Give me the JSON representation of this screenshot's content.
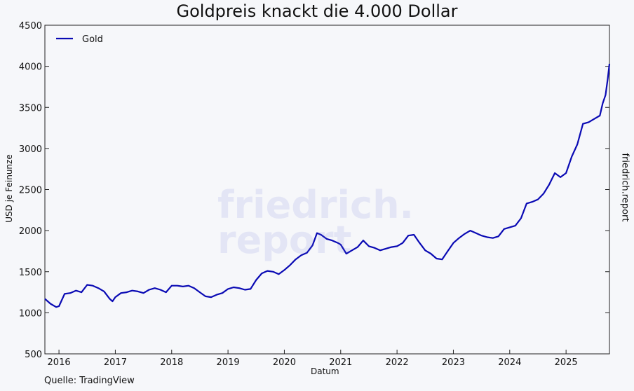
{
  "chart_data": {
    "type": "line",
    "title": "Goldpreis knackt die 4.000 Dollar",
    "xlabel": "Datum",
    "ylabel": "USD je Feinunze",
    "ylim": [
      500,
      4500
    ],
    "xlim": [
      2015.75,
      2025.77
    ],
    "y_ticks": [
      500,
      1000,
      1500,
      2000,
      2500,
      3000,
      3500,
      4000,
      4500
    ],
    "x_ticks": [
      "2016",
      "2017",
      "2018",
      "2019",
      "2020",
      "2021",
      "2022",
      "2023",
      "2024",
      "2025"
    ],
    "legend": "top-left",
    "grid": false,
    "color": "#0a0ab4",
    "series": [
      {
        "name": "Gold",
        "x": [
          2015.75,
          2015.85,
          2015.95,
          2016.0,
          2016.1,
          2016.2,
          2016.3,
          2016.4,
          2016.5,
          2016.6,
          2016.7,
          2016.8,
          2016.9,
          2016.95,
          2017.0,
          2017.1,
          2017.2,
          2017.3,
          2017.4,
          2017.5,
          2017.6,
          2017.7,
          2017.8,
          2017.9,
          2018.0,
          2018.1,
          2018.2,
          2018.3,
          2018.4,
          2018.5,
          2018.6,
          2018.7,
          2018.8,
          2018.9,
          2019.0,
          2019.1,
          2019.2,
          2019.3,
          2019.4,
          2019.5,
          2019.6,
          2019.7,
          2019.8,
          2019.9,
          2020.0,
          2020.1,
          2020.2,
          2020.3,
          2020.4,
          2020.5,
          2020.58,
          2020.65,
          2020.75,
          2020.85,
          2020.95,
          2021.0,
          2021.1,
          2021.2,
          2021.3,
          2021.4,
          2021.5,
          2021.6,
          2021.7,
          2021.8,
          2021.9,
          2022.0,
          2022.1,
          2022.2,
          2022.3,
          2022.4,
          2022.5,
          2022.6,
          2022.7,
          2022.8,
          2022.9,
          2023.0,
          2023.1,
          2023.2,
          2023.3,
          2023.4,
          2023.5,
          2023.6,
          2023.7,
          2023.8,
          2023.9,
          2024.0,
          2024.1,
          2024.2,
          2024.3,
          2024.4,
          2024.5,
          2024.6,
          2024.7,
          2024.8,
          2024.9,
          2025.0,
          2025.1,
          2025.2,
          2025.3,
          2025.4,
          2025.5,
          2025.6,
          2025.65,
          2025.7,
          2025.74,
          2025.77
        ],
        "values": [
          1170,
          1110,
          1070,
          1080,
          1230,
          1240,
          1270,
          1250,
          1340,
          1330,
          1300,
          1260,
          1170,
          1140,
          1190,
          1240,
          1250,
          1270,
          1260,
          1240,
          1280,
          1300,
          1280,
          1250,
          1330,
          1330,
          1320,
          1330,
          1300,
          1250,
          1200,
          1190,
          1220,
          1240,
          1290,
          1310,
          1300,
          1280,
          1290,
          1400,
          1480,
          1510,
          1500,
          1470,
          1520,
          1580,
          1650,
          1700,
          1730,
          1820,
          1970,
          1950,
          1900,
          1880,
          1850,
          1830,
          1720,
          1760,
          1800,
          1880,
          1810,
          1790,
          1760,
          1780,
          1800,
          1810,
          1850,
          1940,
          1950,
          1850,
          1760,
          1720,
          1660,
          1650,
          1750,
          1850,
          1910,
          1960,
          2000,
          1970,
          1940,
          1920,
          1910,
          1930,
          2020,
          2040,
          2060,
          2150,
          2330,
          2350,
          2380,
          2450,
          2560,
          2700,
          2650,
          2700,
          2900,
          3050,
          3300,
          3320,
          3360,
          3400,
          3550,
          3650,
          3850,
          4030
        ]
      }
    ]
  },
  "side_label": "friedrich.report",
  "watermark": {
    "line1": "friedrich.",
    "line2": "report"
  },
  "source": "Quelle: TradingView"
}
